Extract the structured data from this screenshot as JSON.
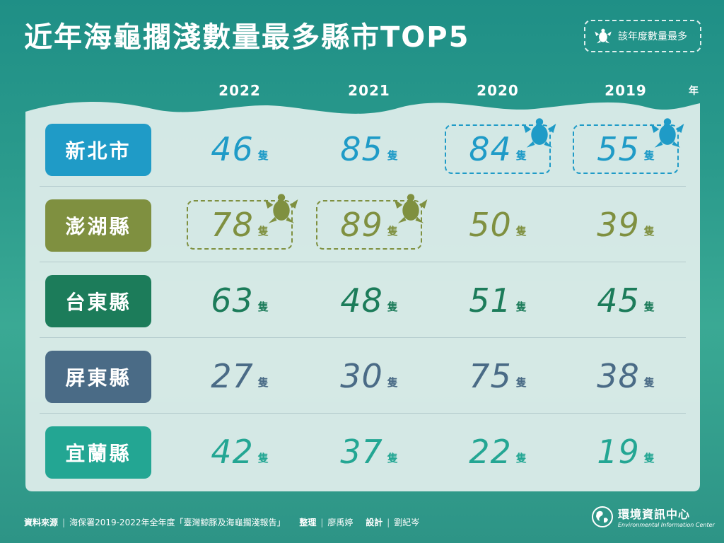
{
  "title": "近年海龜擱淺數量最多縣市TOP5",
  "legend": {
    "label": "該年度數量最多",
    "icon": "turtle-icon"
  },
  "year_unit": "年",
  "unit_label": "隻",
  "chart_data": {
    "type": "table",
    "title": "近年海龜擱淺數量最多縣市TOP5",
    "columns": [
      "2022",
      "2021",
      "2020",
      "2019"
    ],
    "rows": [
      {
        "county": "新北市",
        "color": "#1f9bc7",
        "values": [
          46,
          85,
          84,
          55
        ],
        "max": [
          false,
          false,
          true,
          true
        ]
      },
      {
        "county": "澎湖縣",
        "color": "#7f9040",
        "values": [
          78,
          89,
          50,
          39
        ],
        "max": [
          true,
          true,
          false,
          false
        ]
      },
      {
        "county": "台東縣",
        "color": "#1c7c5a",
        "values": [
          63,
          48,
          51,
          45
        ],
        "max": [
          false,
          false,
          false,
          false
        ]
      },
      {
        "county": "屏東縣",
        "color": "#4a6b86",
        "values": [
          27,
          30,
          75,
          38
        ],
        "max": [
          false,
          false,
          false,
          false
        ]
      },
      {
        "county": "宜蘭縣",
        "color": "#23a693",
        "values": [
          42,
          37,
          22,
          19
        ],
        "max": [
          false,
          false,
          false,
          false
        ]
      }
    ]
  },
  "footer": {
    "source_label": "資料來源",
    "source_text": "海保署2019-2022年全年度「臺灣鯨豚及海龜擱淺報告」",
    "editor_label": "整理",
    "editor": "廖禹婷",
    "design_label": "設計",
    "designer": "劉紀岑"
  },
  "brand": {
    "name_cn": "環境資訊中心",
    "name_en": "Environmental Information Center"
  }
}
